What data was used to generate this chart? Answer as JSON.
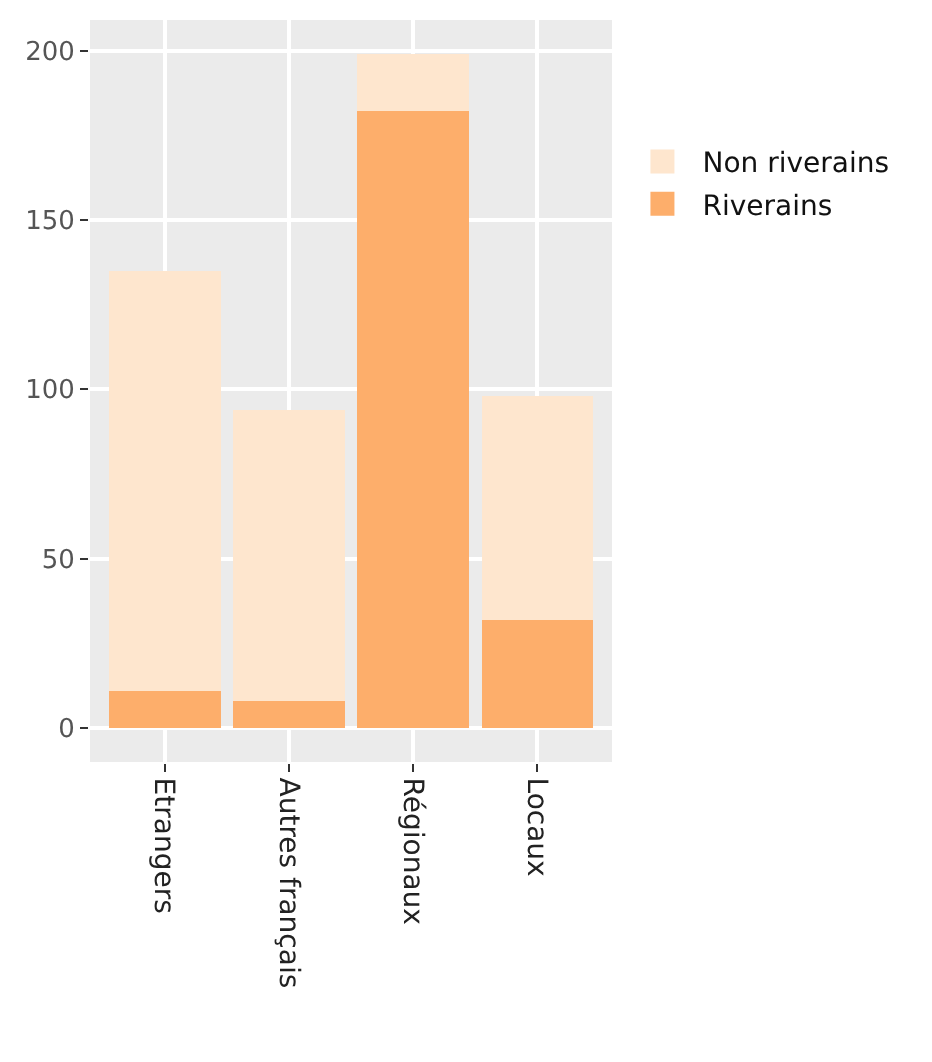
{
  "chart_data": {
    "type": "bar",
    "stacked": true,
    "categories": [
      "Etrangers",
      "Autres français",
      "Régionaux",
      "Locaux"
    ],
    "series": [
      {
        "name": "Riverains",
        "color": "#fdae6b",
        "values": [
          11,
          8,
          182,
          32
        ]
      },
      {
        "name": "Non riverains",
        "color": "#fee6ce",
        "values": [
          124,
          86,
          17,
          66
        ]
      }
    ],
    "ylim": [
      -10,
      209
    ],
    "yticks": [
      0,
      50,
      100,
      150,
      200
    ],
    "grid": true,
    "legend": "right"
  }
}
